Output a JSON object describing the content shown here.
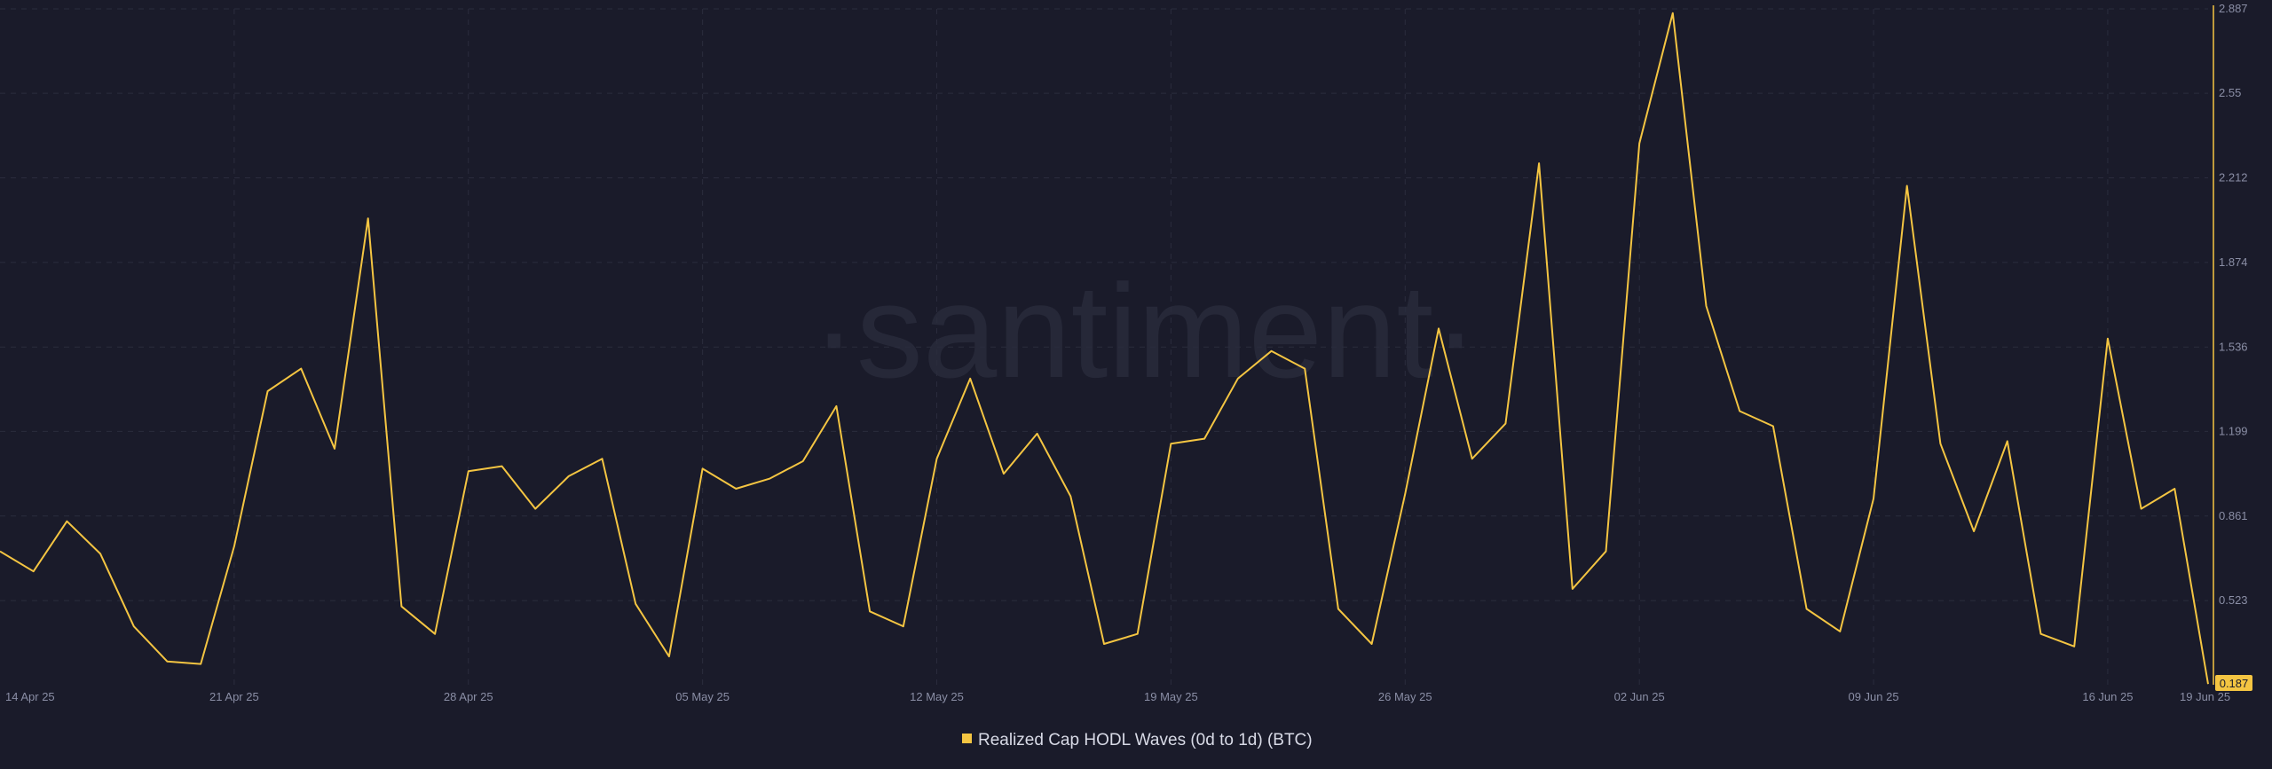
{
  "watermark": "·santiment·",
  "colors": {
    "background": "#1a1b2a",
    "series": "#f4c542",
    "grid": "#2a2c3d",
    "axis_text": "#8a8ea5"
  },
  "chart_data": {
    "type": "line",
    "title": "",
    "xlabel": "",
    "ylabel": "",
    "ylim": [
      0.187,
      2.887
    ],
    "y_ticks": [
      "0.523",
      "0.861",
      "1.199",
      "1.536",
      "1.874",
      "2.212",
      "2.55",
      "2.887"
    ],
    "x_tick_labels": [
      "14 Apr 25",
      "21 Apr 25",
      "28 Apr 25",
      "05 May 25",
      "12 May 25",
      "19 May 25",
      "26 May 25",
      "02 Jun 25",
      "09 Jun 25",
      "16 Jun 25",
      "19 Jun 25"
    ],
    "x_start": "2025-04-14",
    "x_end": "2025-06-19",
    "last_value_label": "0.187",
    "legend_position": "bottom-center",
    "grid": true,
    "series": [
      {
        "name": "Realized Cap HODL Waves (0d to 1d) (BTC)",
        "color": "#f4c542",
        "values": [
          0.72,
          0.64,
          0.84,
          0.71,
          0.42,
          0.28,
          0.27,
          0.74,
          1.36,
          1.45,
          1.13,
          2.05,
          0.5,
          0.39,
          1.04,
          1.06,
          0.89,
          1.02,
          1.09,
          0.51,
          0.3,
          1.05,
          0.97,
          1.01,
          1.08,
          1.3,
          0.48,
          0.42,
          1.09,
          1.41,
          1.03,
          1.19,
          0.94,
          0.35,
          0.39,
          1.15,
          1.17,
          1.41,
          1.52,
          1.45,
          0.49,
          0.35,
          0.95,
          1.61,
          1.09,
          1.23,
          2.27,
          0.57,
          0.72,
          2.35,
          2.87,
          1.7,
          1.28,
          1.22,
          0.49,
          0.4,
          0.93,
          2.18,
          1.15,
          0.8,
          1.16,
          0.39,
          0.34,
          1.57,
          0.89,
          0.97,
          0.19
        ]
      }
    ]
  }
}
